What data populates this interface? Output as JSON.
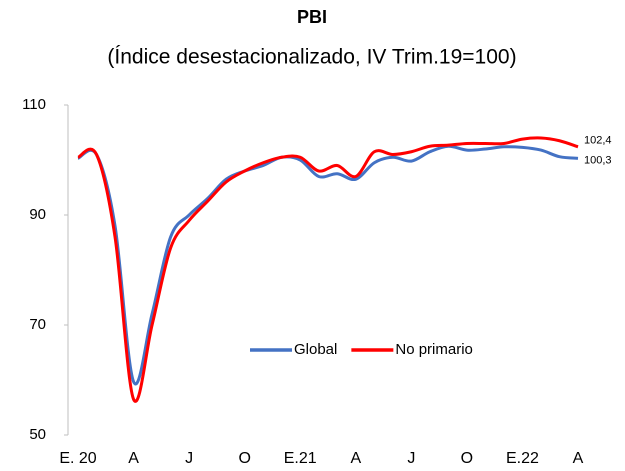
{
  "chart_data": {
    "type": "line",
    "title": "PBI",
    "subtitle": "(Índice desestacionalizado, IV Trim.19=100)",
    "categories": [
      "E. 20",
      null,
      null,
      "A",
      null,
      null,
      "J",
      null,
      null,
      "O",
      null,
      null,
      "E.21",
      null,
      null,
      "A",
      null,
      null,
      "J",
      null,
      null,
      "O",
      null,
      null,
      "E.22",
      null,
      null,
      "A"
    ],
    "series": [
      {
        "name": "Global",
        "color": "#4472c4",
        "values": [
          100.3,
          101,
          88,
          59.7,
          72,
          86,
          90,
          93,
          96.5,
          98,
          99,
          100.5,
          100,
          97,
          97.5,
          96.5,
          99.5,
          100.5,
          99.8,
          101.5,
          102.5,
          101.8,
          102,
          102.4,
          102.3,
          101.8,
          100.6,
          100.3
        ],
        "value_labels": [
          null,
          null,
          null,
          null,
          null,
          null,
          null,
          null,
          null,
          null,
          null,
          null,
          null,
          null,
          null,
          null,
          null,
          null,
          null,
          null,
          null,
          null,
          null,
          null,
          null,
          null,
          null,
          "100,3"
        ]
      },
      {
        "name": "No primario",
        "color": "#ff0000",
        "values": [
          100.5,
          101,
          86,
          56.5,
          70,
          84,
          89,
          92.5,
          96,
          98,
          99.5,
          100.5,
          100.5,
          98,
          99,
          97,
          101.5,
          101,
          101.5,
          102.5,
          102.7,
          103,
          103,
          103,
          103.8,
          104,
          103.5,
          102.4
        ],
        "value_labels": [
          null,
          null,
          null,
          null,
          null,
          null,
          null,
          null,
          null,
          null,
          null,
          null,
          null,
          null,
          null,
          null,
          null,
          null,
          null,
          null,
          null,
          null,
          null,
          null,
          null,
          null,
          null,
          "102,4"
        ]
      }
    ],
    "ylim": [
      50,
      110
    ],
    "yticks": [
      50,
      70,
      90,
      110
    ],
    "grid": false,
    "legend": "center"
  }
}
